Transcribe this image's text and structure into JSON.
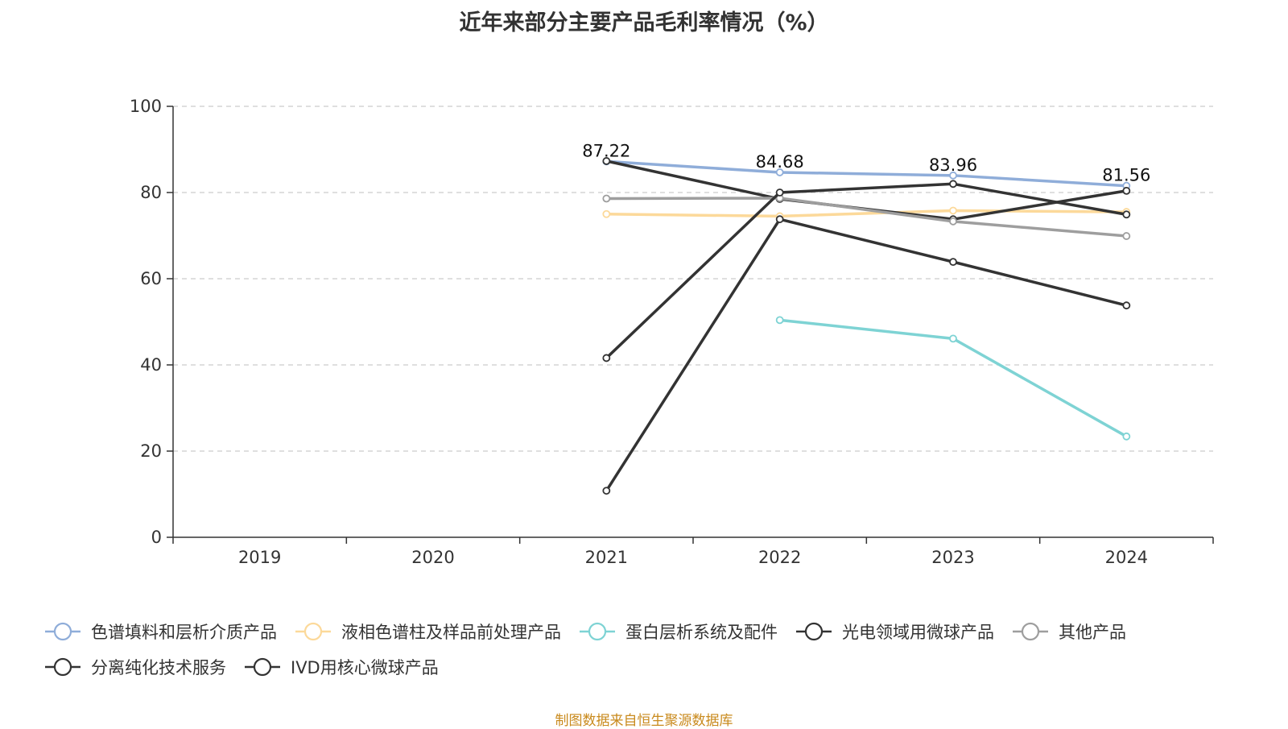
{
  "chart_data": {
    "type": "line",
    "title": "近年来部分主要产品毛利率情况（%）",
    "xlabel": "",
    "ylabel": "",
    "categories": [
      "2019",
      "2020",
      "2021",
      "2022",
      "2023",
      "2024"
    ],
    "ylim": [
      0,
      100
    ],
    "yticks": [
      0,
      20,
      40,
      60,
      80,
      100
    ],
    "grid": true,
    "legend_position": "bottom",
    "series": [
      {
        "name": "色谱填料和层析介质产品",
        "color": "#8fadd9",
        "values": [
          null,
          null,
          87.22,
          84.68,
          83.96,
          81.56
        ],
        "labels": [
          "",
          "",
          "87.22",
          "84.68",
          "83.96",
          "81.56"
        ]
      },
      {
        "name": "液相色谱柱及样品前处理产品",
        "color": "#fcd99a",
        "values": [
          null,
          null,
          75.0,
          74.5,
          75.8,
          75.5
        ],
        "labels": []
      },
      {
        "name": "蛋白层析系统及配件",
        "color": "#7ed3d4",
        "values": [
          null,
          null,
          null,
          50.4,
          46.1,
          23.4
        ],
        "labels": []
      },
      {
        "name": "光电领域用微球产品",
        "color": "#333333",
        "values": [
          null,
          null,
          87.3,
          78.5,
          73.8,
          80.4
        ],
        "labels": []
      },
      {
        "name": "其他产品",
        "color": "#9e9e9e",
        "values": [
          null,
          null,
          78.6,
          78.7,
          73.3,
          69.9
        ],
        "labels": []
      },
      {
        "name": "分离纯化技术服务",
        "color": "#333333",
        "values": [
          null,
          null,
          10.8,
          73.8,
          63.9,
          53.8
        ],
        "labels": []
      },
      {
        "name": "IVD用核心微球产品",
        "color": "#333333",
        "values": [
          null,
          null,
          41.6,
          80.0,
          82.0,
          74.9
        ],
        "labels": []
      }
    ]
  },
  "source": "制图数据来自恒生聚源数据库"
}
